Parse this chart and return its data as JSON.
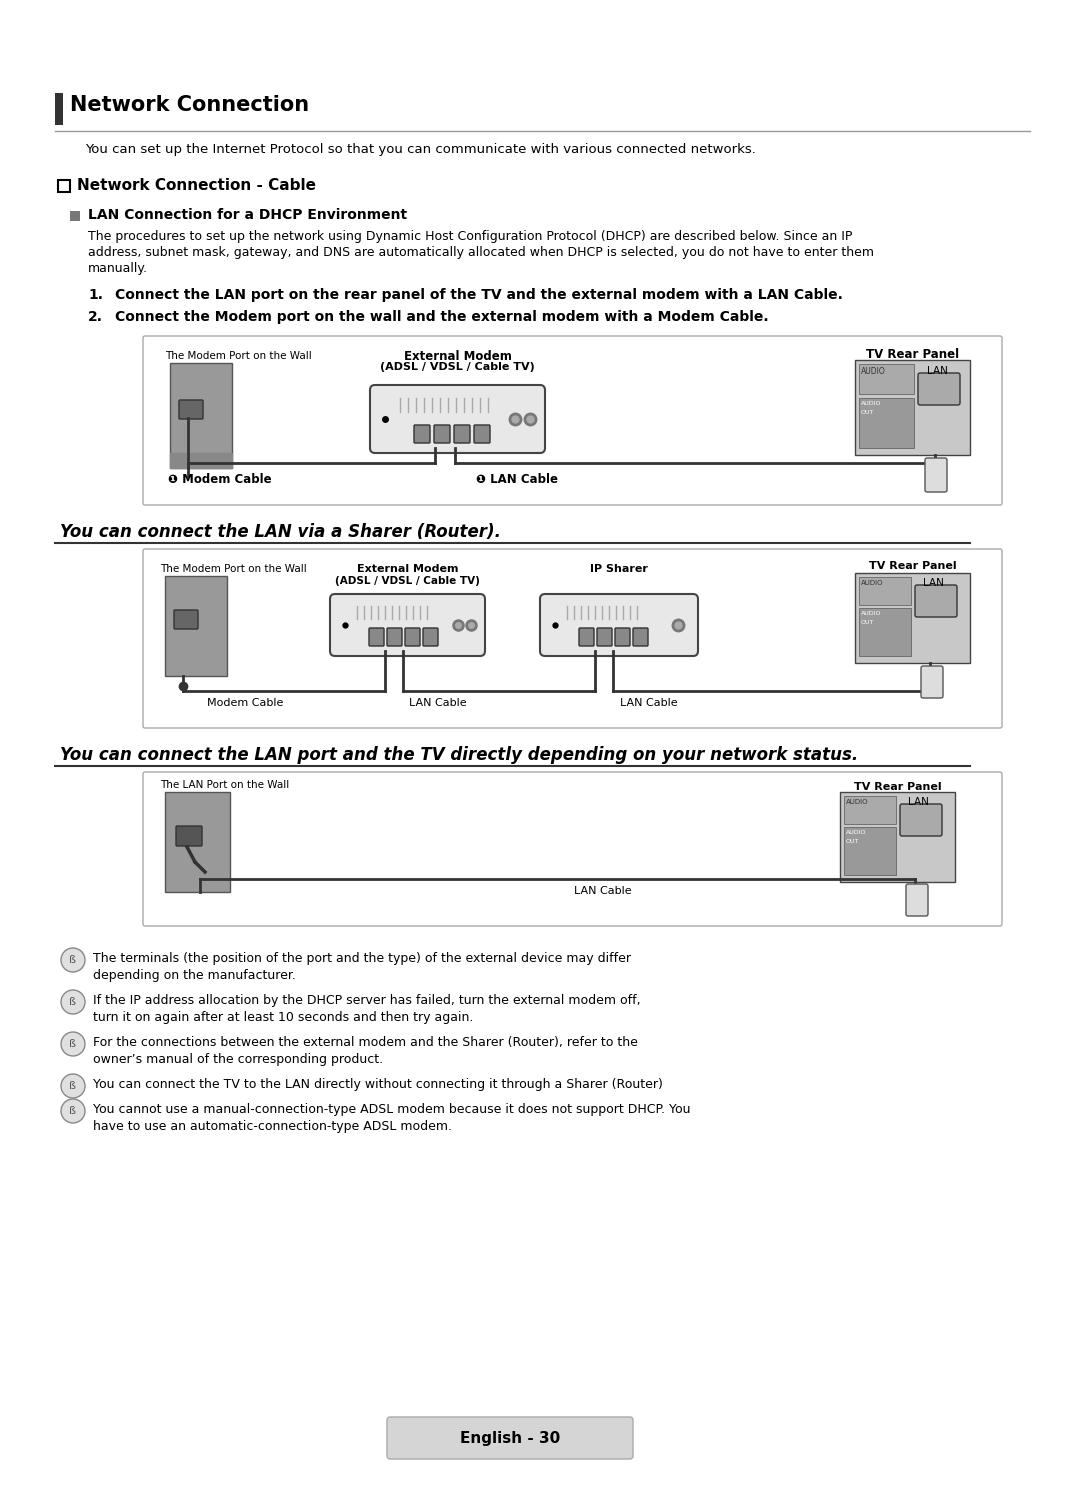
{
  "bg_color": "#ffffff",
  "title": "Network Connection",
  "intro": "You can set up the Internet Protocol so that you can communicate with various connected networks.",
  "sec1_title": "Network Connection - Cable",
  "subsec1_title": "LAN Connection for a DHCP Environment",
  "body1": "The procedures to set up the network using Dynamic Host Configuration Protocol (DHCP) are described below. Since an IP\naddress, subnet mask, gateway, and DNS are automatically allocated when DHCP is selected, you do not have to enter them\nmanually.",
  "step1": "Connect the LAN port on the rear panel of the TV and the external modem with a LAN Cable.",
  "step2": "Connect the Modem port on the wall and the external modem with a Modem Cable.",
  "sec2_title": "You can connect the LAN via a Sharer (Router).",
  "sec3_title": "You can connect the LAN port and the TV directly depending on your network status.",
  "note1": "The terminals (the position of the port and the type) of the external device may differ depending on the manufacturer.",
  "note2": "If the IP address allocation by the DHCP server has failed, turn the external modem off, turn it on again after at least 10 seconds and then try again.",
  "note3": "For the connections between the external modem and the Sharer (Router), refer to the owner’s manual of the corresponding product.",
  "note4": "You can connect the TV to the LAN directly without connecting it through a Sharer (Router)",
  "note5": "You cannot use a manual-connection-type ADSL modem because it does not support DHCP. You have to use an automatic-connection-type ADSL modem.",
  "footer": "English - 30",
  "wall_gray": "#888888",
  "modem_fill": "#e8e8e8",
  "modem_edge": "#444444",
  "tv_fill": "#cccccc",
  "tv_edge": "#444444",
  "box_edge": "#aaaaaa",
  "cable_color": "#333333",
  "note_icon_fill": "#e0e0e0",
  "note_icon_edge": "#888888"
}
